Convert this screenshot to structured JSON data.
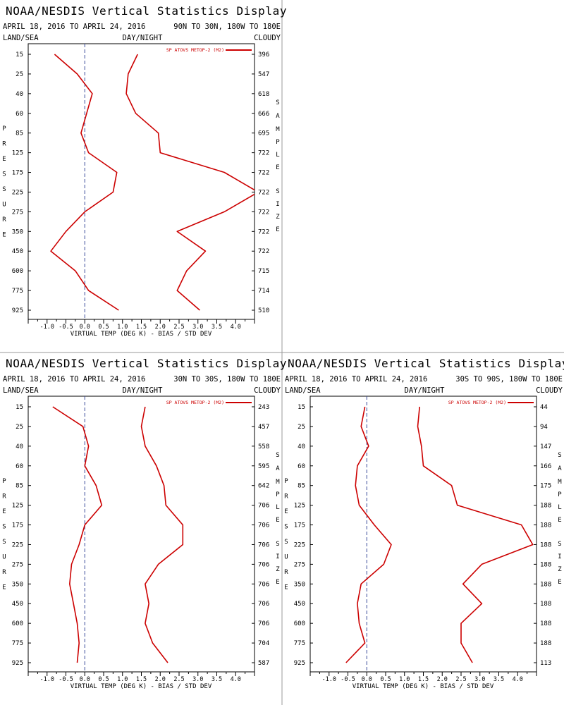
{
  "chart_data": [
    {
      "type": "line",
      "title": "NOAA/NESDIS Vertical Statistics Display",
      "date_range": "APRIL 18, 2016 TO APRIL 24, 2016",
      "region": "90N TO 30N, 180W TO 180E",
      "corner_labels": {
        "left": "LAND/SEA",
        "center": "DAY/NIGHT",
        "right": "CLOUDY"
      },
      "xlabel": "VIRTUAL TEMP (DEG K) - BIAS / STD DEV",
      "ylabel": "PRESSURE",
      "right_axis_label": "SAMPLE SIZE",
      "xlim": [
        -1.5,
        4.5
      ],
      "x_ticks": [
        -1.0,
        -0.5,
        0.0,
        0.5,
        1.0,
        1.5,
        2.0,
        2.5,
        3.0,
        3.5,
        4.0
      ],
      "x_tick_labels": [
        "-1.0",
        "-0.5",
        "0.0",
        "0.5",
        "1.0",
        "1.5",
        "2.0",
        "2.5",
        "3.0",
        "3.5",
        "4.0"
      ],
      "pressure_levels": [
        "15",
        "25",
        "40",
        "60",
        "85",
        "125",
        "175",
        "225",
        "275",
        "350",
        "450",
        "600",
        "775",
        "925"
      ],
      "sample_sizes": [
        "396",
        "547",
        "618",
        "666",
        "695",
        "722",
        "722",
        "722",
        "722",
        "722",
        "722",
        "715",
        "714",
        "510"
      ],
      "legend": {
        "label": "SP ATOVS METOP-2 (M2)",
        "color": "#cc0000",
        "placement": "top-right"
      },
      "zero_line": {
        "x": 0,
        "style": "dashed"
      },
      "series": [
        {
          "role": "bias",
          "color": "#cc0000",
          "values": [
            -0.8,
            -0.2,
            0.2,
            0.05,
            -0.1,
            0.1,
            0.85,
            0.75,
            0.0,
            -0.5,
            -0.9,
            -0.25,
            0.1,
            0.9
          ]
        },
        {
          "role": "std_dev",
          "color": "#cc0000",
          "values": [
            1.4,
            1.15,
            1.1,
            1.35,
            1.95,
            2.0,
            3.7,
            4.6,
            3.7,
            2.45,
            3.2,
            2.7,
            2.45,
            3.05
          ]
        }
      ]
    },
    {
      "type": "line",
      "title": "NOAA/NESDIS Vertical Statistics Display",
      "date_range": "APRIL 18, 2016 TO APRIL 24, 2016",
      "region": "30N TO 30S, 180W TO 180E",
      "corner_labels": {
        "left": "LAND/SEA",
        "center": "DAY/NIGHT",
        "right": "CLOUDY"
      },
      "xlabel": "VIRTUAL TEMP (DEG K) - BIAS / STD DEV",
      "ylabel": "PRESSURE",
      "right_axis_label": "SAMPLE SIZE",
      "xlim": [
        -1.5,
        4.5
      ],
      "x_ticks": [
        -1.0,
        -0.5,
        0.0,
        0.5,
        1.0,
        1.5,
        2.0,
        2.5,
        3.0,
        3.5,
        4.0
      ],
      "x_tick_labels": [
        "-1.0",
        "-0.5",
        "0.0",
        "0.5",
        "1.0",
        "1.5",
        "2.0",
        "2.5",
        "3.0",
        "3.5",
        "4.0"
      ],
      "pressure_levels": [
        "15",
        "25",
        "40",
        "60",
        "85",
        "125",
        "175",
        "225",
        "275",
        "350",
        "450",
        "600",
        "775",
        "925"
      ],
      "sample_sizes": [
        "243",
        "457",
        "558",
        "595",
        "642",
        "706",
        "706",
        "706",
        "706",
        "706",
        "706",
        "706",
        "704",
        "587"
      ],
      "legend": {
        "label": "SP ATOVS METOP-2 (M2)",
        "color": "#cc0000",
        "placement": "top-right"
      },
      "zero_line": {
        "x": 0,
        "style": "dashed"
      },
      "series": [
        {
          "role": "bias",
          "color": "#cc0000",
          "values": [
            -0.85,
            -0.05,
            0.1,
            0.0,
            0.3,
            0.45,
            0.0,
            -0.15,
            -0.35,
            -0.4,
            -0.3,
            -0.2,
            -0.15,
            -0.2
          ]
        },
        {
          "role": "std_dev",
          "color": "#cc0000",
          "values": [
            1.6,
            1.5,
            1.6,
            1.9,
            2.1,
            2.15,
            2.6,
            2.6,
            1.95,
            1.6,
            1.7,
            1.6,
            1.8,
            2.2
          ]
        }
      ]
    },
    {
      "type": "line",
      "title": "NOAA/NESDIS Vertical Statistics Display",
      "date_range": "APRIL 18, 2016 TO APRIL 24, 2016",
      "region": "30S TO 90S, 180W TO 180E",
      "corner_labels": {
        "left": "LAND/SEA",
        "center": "DAY/NIGHT",
        "right": "CLOUDY"
      },
      "xlabel": "VIRTUAL TEMP (DEG K) - BIAS / STD DEV",
      "ylabel": "PRESSURE",
      "right_axis_label": "SAMPLE SIZE",
      "xlim": [
        -1.5,
        4.5
      ],
      "x_ticks": [
        -1.0,
        -0.5,
        0.0,
        0.5,
        1.0,
        1.5,
        2.0,
        2.5,
        3.0,
        3.5,
        4.0
      ],
      "x_tick_labels": [
        "-1.0",
        "-0.5",
        "0.0",
        "0.5",
        "1.0",
        "1.5",
        "2.0",
        "2.5",
        "3.0",
        "3.5",
        "4.0"
      ],
      "pressure_levels": [
        "15",
        "25",
        "40",
        "60",
        "85",
        "125",
        "175",
        "225",
        "275",
        "350",
        "450",
        "600",
        "775",
        "925"
      ],
      "sample_sizes": [
        "44",
        "94",
        "147",
        "166",
        "175",
        "188",
        "188",
        "188",
        "188",
        "188",
        "188",
        "188",
        "188",
        "113"
      ],
      "legend": {
        "label": "SP ATOVS METOP-2 (M2)",
        "color": "#cc0000",
        "placement": "top-right"
      },
      "zero_line": {
        "x": 0,
        "style": "dashed"
      },
      "series": [
        {
          "role": "bias",
          "color": "#cc0000",
          "values": [
            -0.05,
            -0.15,
            0.05,
            -0.25,
            -0.3,
            -0.2,
            0.2,
            0.65,
            0.45,
            -0.15,
            -0.25,
            -0.2,
            -0.05,
            -0.55
          ]
        },
        {
          "role": "std_dev",
          "color": "#cc0000",
          "values": [
            1.4,
            1.35,
            1.45,
            1.5,
            2.25,
            2.4,
            4.1,
            4.4,
            3.05,
            2.55,
            3.05,
            2.5,
            2.5,
            2.8
          ]
        }
      ]
    }
  ]
}
